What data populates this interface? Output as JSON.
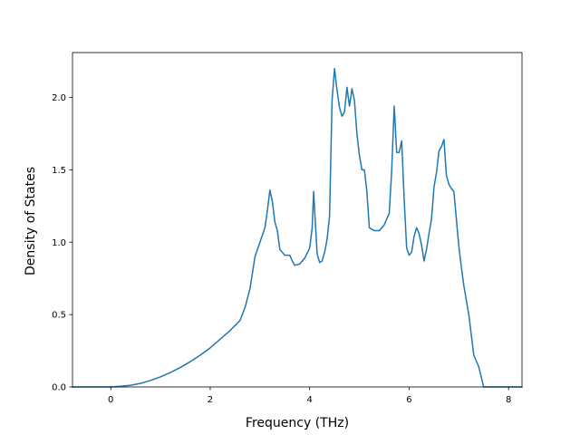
{
  "chart_data": {
    "type": "line",
    "title": "",
    "xlabel": "Frequency (THz)",
    "ylabel": "Density of States",
    "xlim": [
      -0.77,
      8.27
    ],
    "ylim": [
      0.0,
      2.31
    ],
    "x_ticks": [
      0,
      2,
      4,
      6,
      8
    ],
    "y_ticks": [
      0.0,
      0.5,
      1.0,
      1.5,
      2.0
    ],
    "x_tick_labels": [
      "0",
      "2",
      "4",
      "6",
      "8"
    ],
    "y_tick_labels": [
      "0.0",
      "0.5",
      "1.0",
      "1.5",
      "2.0"
    ],
    "grid": false,
    "legend": "none",
    "line_color": "#1f77b4",
    "series": [
      {
        "x": [
          -0.77,
          -0.4,
          0.0,
          0.2,
          0.4,
          0.6,
          0.8,
          1.0,
          1.2,
          1.4,
          1.6,
          1.8,
          2.0,
          2.2,
          2.4,
          2.6,
          2.7,
          2.8,
          2.9,
          2.95,
          3.0,
          3.1,
          3.15,
          3.2,
          3.25,
          3.3,
          3.35,
          3.4,
          3.45,
          3.5,
          3.6,
          3.65,
          3.7,
          3.8,
          3.9,
          4.0,
          4.05,
          4.08,
          4.1,
          4.15,
          4.2,
          4.25,
          4.3,
          4.35,
          4.4,
          4.45,
          4.5,
          4.55,
          4.6,
          4.65,
          4.7,
          4.75,
          4.8,
          4.85,
          4.9,
          4.95,
          5.0,
          5.05,
          5.1,
          5.15,
          5.2,
          5.3,
          5.4,
          5.5,
          5.6,
          5.65,
          5.7,
          5.75,
          5.8,
          5.85,
          5.9,
          5.95,
          6.0,
          6.05,
          6.1,
          6.15,
          6.2,
          6.25,
          6.3,
          6.35,
          6.4,
          6.45,
          6.5,
          6.55,
          6.6,
          6.65,
          6.7,
          6.75,
          6.8,
          6.85,
          6.9,
          7.0,
          7.05,
          7.1,
          7.2,
          7.3,
          7.4,
          7.5,
          7.55,
          7.6,
          8.0,
          8.27
        ],
        "y": [
          0.0,
          0.0,
          0.0,
          0.005,
          0.012,
          0.025,
          0.045,
          0.07,
          0.1,
          0.135,
          0.175,
          0.22,
          0.27,
          0.33,
          0.39,
          0.46,
          0.55,
          0.68,
          0.9,
          0.95,
          1.0,
          1.1,
          1.22,
          1.36,
          1.28,
          1.14,
          1.08,
          0.95,
          0.93,
          0.91,
          0.91,
          0.87,
          0.84,
          0.85,
          0.89,
          0.96,
          1.1,
          1.35,
          1.22,
          0.92,
          0.86,
          0.87,
          0.93,
          1.02,
          1.18,
          1.98,
          2.2,
          2.05,
          1.93,
          1.87,
          1.9,
          2.07,
          1.94,
          2.06,
          1.98,
          1.75,
          1.6,
          1.5,
          1.5,
          1.35,
          1.1,
          1.08,
          1.08,
          1.12,
          1.2,
          1.5,
          1.94,
          1.62,
          1.62,
          1.7,
          1.3,
          0.96,
          0.91,
          0.93,
          1.04,
          1.1,
          1.06,
          0.98,
          0.87,
          0.95,
          1.06,
          1.16,
          1.38,
          1.48,
          1.63,
          1.66,
          1.71,
          1.46,
          1.4,
          1.37,
          1.35,
          0.97,
          0.83,
          0.7,
          0.5,
          0.22,
          0.14,
          0.0,
          0.0,
          0.0,
          0.0,
          0.0
        ]
      }
    ]
  }
}
